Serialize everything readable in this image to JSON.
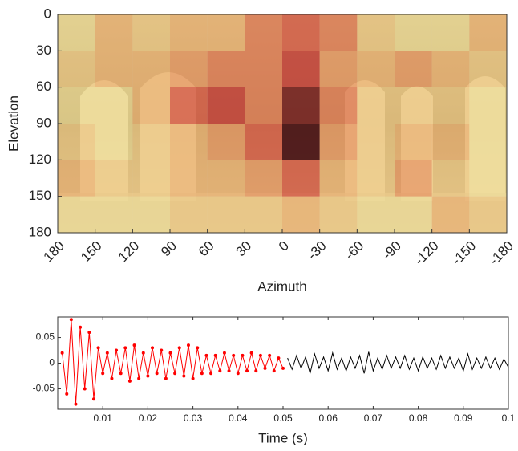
{
  "chart_data": [
    {
      "type": "heatmap",
      "xlabel": "Azimuth",
      "ylabel": "Elevation",
      "xlim": [
        180,
        -180
      ],
      "ylim": [
        180,
        0
      ],
      "xticks": [
        180,
        150,
        120,
        90,
        60,
        30,
        0,
        -30,
        -60,
        -90,
        -120,
        -150,
        -180
      ],
      "yticks": [
        0,
        30,
        60,
        90,
        120,
        150,
        180
      ],
      "z": [
        [
          0.1,
          0.3,
          0.2,
          0.3,
          0.3,
          0.5,
          0.6,
          0.5,
          0.2,
          0.1,
          0.1,
          0.3
        ],
        [
          0.2,
          0.3,
          0.3,
          0.4,
          0.5,
          0.5,
          0.7,
          0.4,
          0.3,
          0.4,
          0.3,
          0.2
        ],
        [
          0.1,
          0.1,
          0.3,
          0.6,
          0.7,
          0.5,
          0.9,
          0.5,
          0.2,
          0.2,
          0.2,
          0.1
        ],
        [
          0.2,
          0.1,
          0.2,
          0.3,
          0.4,
          0.6,
          1.0,
          0.4,
          0.2,
          0.3,
          0.3,
          0.1
        ],
        [
          0.3,
          0.2,
          0.2,
          0.3,
          0.3,
          0.4,
          0.6,
          0.3,
          0.2,
          0.4,
          0.2,
          0.1
        ],
        [
          0.1,
          0.1,
          0.1,
          0.2,
          0.2,
          0.2,
          0.3,
          0.2,
          0.1,
          0.1,
          0.3,
          0.2
        ]
      ]
    },
    {
      "type": "line",
      "xlabel": "Time (s)",
      "xlim": [
        0,
        0.1
      ],
      "ylim": [
        -0.09,
        0.09
      ],
      "xticks": [
        0.01,
        0.02,
        0.03,
        0.04,
        0.05,
        0.06,
        0.07,
        0.08,
        0.09,
        0.1
      ],
      "yticks": [
        0.05,
        0,
        -0.05
      ],
      "series": [
        {
          "color": "#ff0000",
          "marker": true,
          "x": [
            0.001,
            0.002,
            0.003,
            0.004,
            0.005,
            0.006,
            0.007,
            0.008,
            0.009,
            0.01,
            0.011,
            0.012,
            0.013,
            0.014,
            0.015,
            0.016,
            0.017,
            0.018,
            0.019,
            0.02,
            0.021,
            0.022,
            0.023,
            0.024,
            0.025,
            0.026,
            0.027,
            0.028,
            0.029,
            0.03,
            0.031,
            0.032,
            0.033,
            0.034,
            0.035,
            0.036,
            0.037,
            0.038,
            0.039,
            0.04,
            0.041,
            0.042,
            0.043,
            0.044,
            0.045,
            0.046,
            0.047,
            0.048,
            0.049,
            0.05
          ],
          "values": [
            0.02,
            -0.06,
            0.085,
            -0.08,
            0.07,
            -0.05,
            0.06,
            -0.07,
            0.03,
            -0.02,
            0.02,
            -0.03,
            0.025,
            -0.02,
            0.03,
            -0.035,
            0.035,
            -0.03,
            0.02,
            -0.025,
            0.03,
            -0.02,
            0.025,
            -0.03,
            0.02,
            -0.02,
            0.03,
            -0.025,
            0.035,
            -0.03,
            0.03,
            -0.02,
            0.015,
            -0.02,
            0.015,
            -0.015,
            0.02,
            -0.015,
            0.015,
            -0.02,
            0.015,
            -0.015,
            0.02,
            -0.015,
            0.015,
            -0.01,
            0.015,
            -0.015,
            0.01,
            -0.01
          ]
        },
        {
          "color": "#000000",
          "marker": false,
          "x": [
            0.051,
            0.052,
            0.053,
            0.054,
            0.055,
            0.056,
            0.057,
            0.058,
            0.059,
            0.06,
            0.061,
            0.062,
            0.063,
            0.064,
            0.065,
            0.066,
            0.067,
            0.068,
            0.069,
            0.07,
            0.071,
            0.072,
            0.073,
            0.074,
            0.075,
            0.076,
            0.077,
            0.078,
            0.079,
            0.08,
            0.081,
            0.082,
            0.083,
            0.084,
            0.085,
            0.086,
            0.087,
            0.088,
            0.089,
            0.09,
            0.091,
            0.092,
            0.093,
            0.094,
            0.095,
            0.096,
            0.097,
            0.098,
            0.099,
            0.1
          ],
          "values": [
            0.01,
            -0.012,
            0.015,
            -0.01,
            0.012,
            -0.02,
            0.018,
            -0.01,
            0.012,
            -0.015,
            0.02,
            -0.012,
            0.01,
            -0.015,
            0.012,
            -0.01,
            0.015,
            -0.02,
            0.022,
            -0.015,
            0.01,
            -0.012,
            0.015,
            -0.01,
            0.012,
            -0.01,
            0.015,
            -0.012,
            0.01,
            -0.015,
            0.012,
            -0.01,
            0.01,
            -0.012,
            0.015,
            -0.01,
            0.012,
            -0.01,
            0.01,
            -0.015,
            0.018,
            -0.012,
            0.01,
            -0.01,
            0.012,
            -0.01,
            0.01,
            -0.012,
            0.008,
            -0.008
          ]
        }
      ]
    }
  ]
}
